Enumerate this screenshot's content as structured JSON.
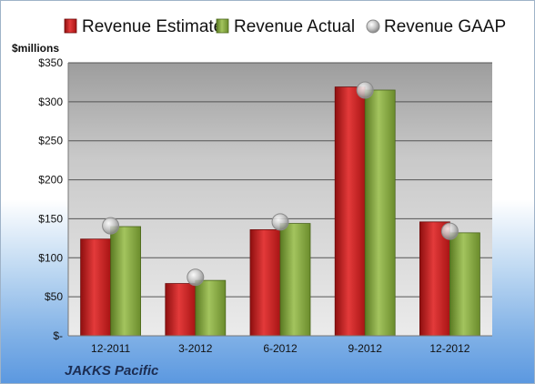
{
  "chart_data": {
    "type": "bar",
    "unit_label": "$millions",
    "categories": [
      "12-2011",
      "3-2012",
      "6-2012",
      "9-2012",
      "12-2012"
    ],
    "series": [
      {
        "name": "Revenue Estimate",
        "kind": "bar",
        "color": "#cc1f1f",
        "values": [
          124,
          67,
          136,
          319,
          146
        ]
      },
      {
        "name": "Revenue Actual",
        "kind": "bar",
        "color": "#7ea33a",
        "values": [
          140,
          71,
          144,
          315,
          132
        ]
      },
      {
        "name": "Revenue GAAP",
        "kind": "marker",
        "color": "#a6a6a6",
        "values": [
          141,
          75,
          146,
          315,
          134
        ]
      }
    ],
    "y_ticks": [
      {
        "value": 0,
        "label": "$-"
      },
      {
        "value": 50,
        "label": "$50"
      },
      {
        "value": 100,
        "label": "$100"
      },
      {
        "value": 150,
        "label": "$150"
      },
      {
        "value": 200,
        "label": "$200"
      },
      {
        "value": 250,
        "label": "$250"
      },
      {
        "value": 300,
        "label": "$300"
      },
      {
        "value": 350,
        "label": "$350"
      }
    ],
    "ylim": [
      0,
      350
    ],
    "grid": true,
    "legend_position": "top",
    "footer": "JAKKS Pacific"
  }
}
